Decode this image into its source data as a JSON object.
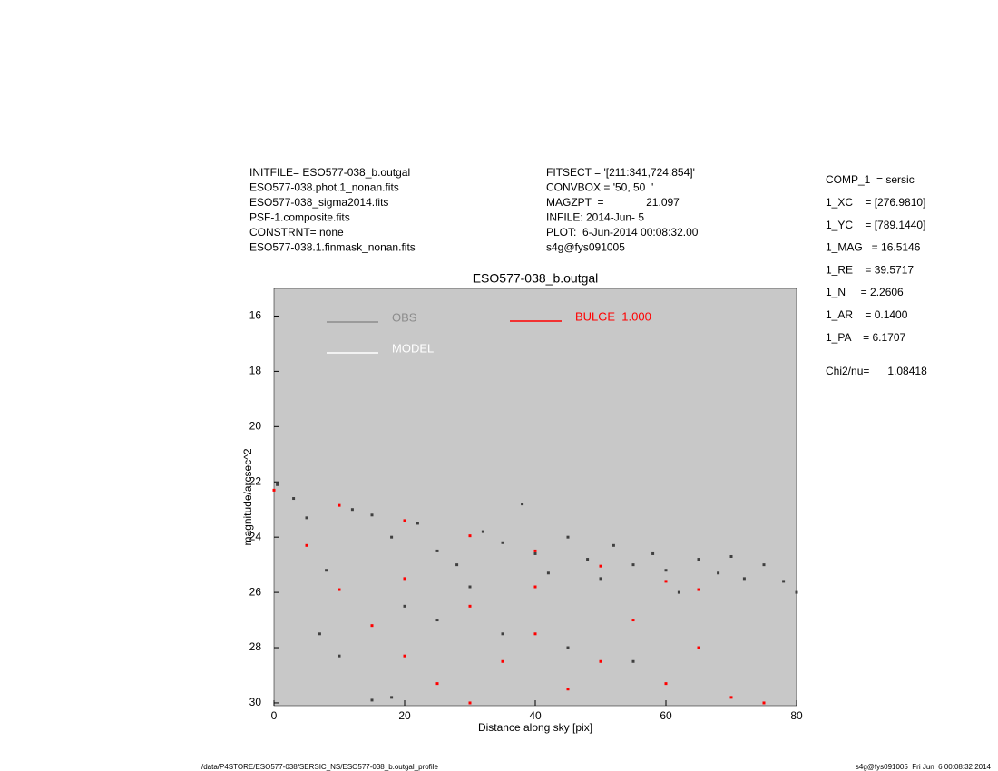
{
  "chart_data": {
    "type": "scatter",
    "title": "ESO577-038_b.outgal",
    "x_label": "Distance along sky [pix]",
    "y_label": "magnitude/arcsec^2",
    "xlim": [
      0,
      80
    ],
    "ylim": [
      30.1,
      15
    ],
    "xticks": [
      0,
      20,
      40,
      60,
      80
    ],
    "yticks": [
      16,
      18,
      20,
      22,
      24,
      26,
      28,
      30
    ],
    "series": [
      {
        "name": "OBS",
        "color": "#404040",
        "legend_color": "#8c8c8c",
        "x": [
          0.5,
          3,
          5,
          8,
          12,
          15,
          18,
          20,
          22,
          25,
          28,
          30,
          32,
          35,
          38,
          40,
          42,
          45,
          48,
          50,
          52,
          55,
          58,
          60,
          62,
          65,
          68,
          70,
          72,
          75,
          78,
          80,
          7,
          10,
          15,
          18,
          25,
          35,
          45,
          55
        ],
        "values": [
          22.1,
          22.6,
          23.3,
          25.2,
          23.0,
          23.2,
          24.0,
          26.5,
          23.5,
          24.5,
          25.0,
          25.8,
          23.8,
          24.2,
          22.8,
          24.6,
          25.3,
          24.0,
          24.8,
          25.5,
          24.3,
          25.0,
          24.6,
          25.2,
          26.0,
          24.8,
          25.3,
          24.7,
          25.5,
          25.0,
          25.6,
          26.0,
          27.5,
          28.3,
          29.9,
          29.8,
          27.0,
          27.5,
          28.0,
          28.5
        ]
      },
      {
        "name": "MODEL",
        "color": "#ffffff",
        "legend_color": "#ffffff",
        "x": [],
        "values": []
      },
      {
        "name": "BULGE  1.000",
        "color": "#ff0000",
        "legend_color": "#ff0000",
        "x": [
          0,
          10,
          20,
          30,
          40,
          50,
          60,
          65,
          5,
          10,
          15,
          20,
          25,
          30,
          20,
          30,
          40,
          50,
          60,
          70,
          40,
          55,
          65,
          35,
          45,
          75
        ],
        "values": [
          22.3,
          22.85,
          23.4,
          23.95,
          24.5,
          25.05,
          25.6,
          25.9,
          24.3,
          25.9,
          27.2,
          28.3,
          29.3,
          30.0,
          25.5,
          26.5,
          27.5,
          28.5,
          29.3,
          29.8,
          25.8,
          27.0,
          28.0,
          28.5,
          29.5,
          30.0
        ]
      }
    ],
    "info_left": [
      "INITFILE= ESO577-038_b.outgal",
      "ESO577-038.phot.1_nonan.fits",
      "ESO577-038_sigma2014.fits",
      "PSF-1.composite.fits",
      "CONSTRNT= none",
      "ESO577-038.1.finmask_nonan.fits"
    ],
    "info_middle": [
      "FITSECT = '[211:341,724:854]'",
      "CONVBOX = '50, 50  '",
      "MAGZPT  =              21.097",
      "INFILE: 2014-Jun- 5",
      "PLOT:  6-Jun-2014 00:08:32.00",
      "s4g@fys091005"
    ],
    "params": [
      "COMP_1  = sersic",
      "1_XC    = [276.9810]",
      "1_YC    = [789.1440]",
      "1_MAG   = 16.5146",
      "1_RE    = 39.5717",
      "1_N     = 2.2606",
      "1_AR    = 0.1400",
      "1_PA    = 6.1707"
    ],
    "chi2": "Chi2/nu=      1.08418",
    "footer_left": "/data/P4STORE/ESO577-038/SERSIC_NS/ESO577-038_b.outgal_profile",
    "footer_right": "s4g@fys091005  Fri Jun  6 00:08:32 2014"
  }
}
